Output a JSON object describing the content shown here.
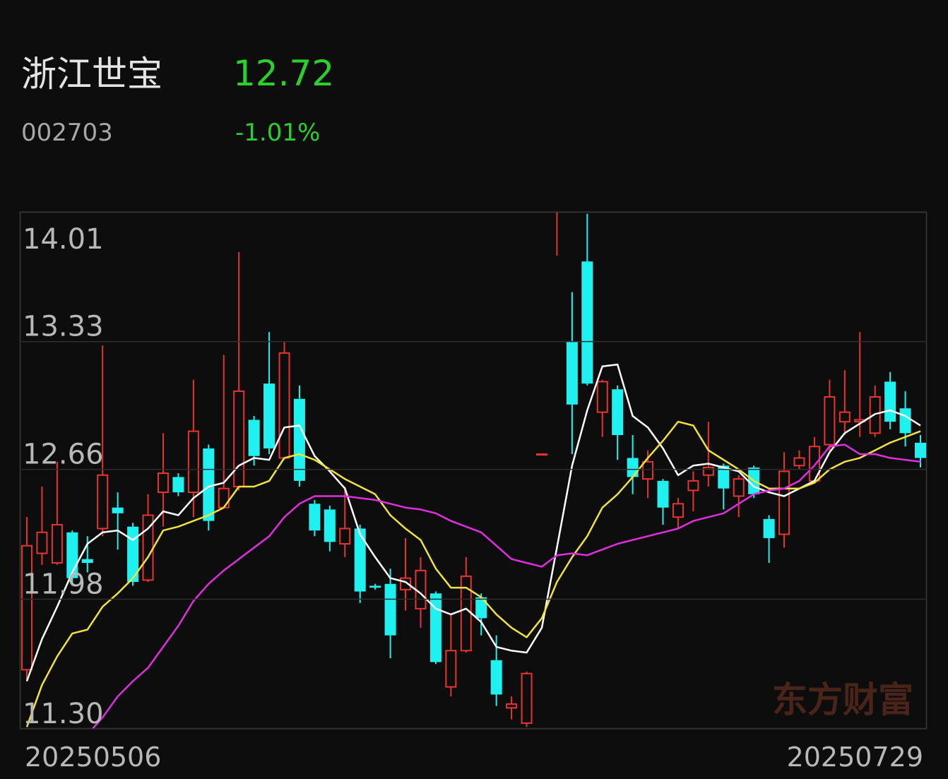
{
  "header": {
    "name": "浙江世宝",
    "price": "12.72",
    "code": "002703",
    "change": "-1.01%"
  },
  "watermark": "东方财富",
  "chart_data": {
    "type": "candlestick",
    "categories": [
      "20250506",
      null,
      null,
      null,
      null,
      null,
      null,
      null,
      null,
      null,
      null,
      null,
      null,
      null,
      null,
      null,
      null,
      null,
      null,
      null,
      null,
      null,
      null,
      null,
      null,
      null,
      null,
      null,
      null,
      null,
      null,
      null,
      null,
      null,
      null,
      null,
      null,
      null,
      null,
      null,
      null,
      null,
      null,
      null,
      null,
      null,
      null,
      null,
      null,
      null,
      null,
      null,
      null,
      null,
      null,
      null,
      null,
      null,
      null,
      "20250729"
    ],
    "open": [
      11.61,
      12.22,
      12.17,
      12.33,
      12.19,
      12.35,
      12.46,
      12.36,
      12.08,
      12.54,
      12.62,
      12.54,
      12.77,
      12.46,
      12.57,
      12.92,
      13.11,
      12.72,
      13.03,
      12.48,
      12.45,
      12.27,
      12.35,
      12.05,
      12.06,
      12.03,
      11.93,
      12.01,
      11.52,
      11.71,
      11.99,
      11.66,
      11.41,
      11.33,
      12.74,
      14.02,
      13.33,
      13.75,
      12.96,
      13.08,
      12.72,
      12.61,
      12.6,
      12.41,
      12.55,
      12.63,
      12.68,
      12.52,
      12.67,
      12.4,
      12.32,
      12.68,
      12.6,
      12.79,
      12.91,
      12.91,
      12.85,
      13.12,
      12.98,
      12.8
    ],
    "high": [
      12.41,
      12.57,
      12.7,
      12.34,
      12.31,
      13.31,
      12.54,
      12.38,
      12.53,
      12.85,
      12.64,
      13.13,
      12.79,
      13.26,
      13.8,
      12.94,
      13.38,
      13.33,
      13.1,
      12.5,
      12.47,
      12.57,
      12.37,
      12.06,
      12.14,
      12.3,
      12.2,
      12.02,
      11.9,
      12.2,
      12.01,
      11.79,
      11.47,
      11.6,
      12.74,
      14.02,
      13.59,
      14.0,
      13.13,
      13.1,
      12.84,
      12.76,
      12.61,
      12.51,
      12.65,
      12.91,
      12.69,
      12.63,
      12.68,
      12.42,
      12.75,
      12.76,
      12.83,
      13.13,
      13.18,
      13.38,
      13.1,
      13.17,
      13.07,
      12.84
    ],
    "low": [
      11.55,
      12.16,
      12.16,
      12.05,
      12.12,
      12.31,
      12.24,
      12.05,
      12.07,
      12.36,
      12.52,
      12.41,
      12.34,
      12.46,
      12.55,
      12.68,
      12.74,
      12.71,
      12.57,
      12.31,
      12.23,
      12.2,
      11.96,
      12.03,
      11.67,
      11.92,
      11.83,
      11.64,
      11.47,
      11.7,
      11.79,
      11.42,
      11.35,
      11.31,
      12.74,
      13.78,
      12.74,
      13.1,
      12.83,
      12.71,
      12.53,
      12.51,
      12.37,
      12.35,
      12.44,
      12.57,
      12.45,
      12.41,
      12.51,
      12.17,
      12.25,
      12.66,
      12.59,
      12.76,
      12.84,
      12.83,
      12.83,
      12.87,
      12.78,
      12.67
    ],
    "close": [
      12.26,
      12.33,
      12.37,
      12.09,
      12.17,
      12.63,
      12.43,
      12.07,
      12.42,
      12.64,
      12.54,
      12.86,
      12.39,
      12.56,
      13.07,
      12.73,
      12.77,
      13.27,
      12.6,
      12.34,
      12.28,
      12.35,
      12.02,
      12.04,
      11.79,
      12.09,
      12.13,
      11.65,
      11.71,
      12.1,
      11.88,
      11.48,
      11.43,
      11.59,
      12.74,
      14.02,
      13.0,
      13.11,
      13.12,
      12.84,
      12.62,
      12.7,
      12.46,
      12.48,
      12.6,
      12.67,
      12.56,
      12.61,
      12.53,
      12.3,
      12.65,
      12.72,
      12.78,
      13.04,
      12.96,
      12.92,
      13.04,
      12.91,
      12.85,
      12.72
    ],
    "up_color": "#e8342f",
    "down_color": "#1ff0f0",
    "lines": [
      {
        "color": "#ffffff",
        "values": [
          11.55,
          11.77,
          11.94,
          12.12,
          12.27,
          12.33,
          12.34,
          12.29,
          12.35,
          12.44,
          12.42,
          12.51,
          12.57,
          12.59,
          12.68,
          12.72,
          12.71,
          12.88,
          12.89,
          12.73,
          12.65,
          12.56,
          12.32,
          12.2,
          12.09,
          12.07,
          12.01,
          11.93,
          11.9,
          11.93,
          11.86,
          11.73,
          11.71,
          11.7,
          11.83,
          12.25,
          12.68,
          12.97,
          13.2,
          13.21,
          12.94,
          12.88,
          12.77,
          12.63,
          12.68,
          12.69,
          12.67,
          12.65,
          12.57,
          12.54,
          12.52,
          12.56,
          12.6,
          12.75,
          12.85,
          12.9,
          12.95,
          12.97,
          12.94,
          12.89
        ]
      },
      {
        "color": "#f2e23a",
        "values": [
          11.31,
          11.53,
          11.68,
          11.8,
          11.82,
          11.94,
          12.01,
          12.09,
          12.2,
          12.34,
          12.36,
          12.39,
          12.42,
          12.46,
          12.57,
          12.57,
          12.6,
          12.72,
          12.74,
          12.71,
          12.66,
          12.61,
          12.57,
          12.53,
          12.42,
          12.35,
          12.29,
          12.14,
          12.04,
          12.04,
          11.99,
          11.9,
          11.83,
          11.78,
          11.88,
          12.07,
          12.2,
          12.31,
          12.46,
          12.53,
          12.62,
          12.72,
          12.81,
          12.91,
          12.89,
          12.76,
          12.71,
          12.66,
          12.6,
          12.56,
          12.56,
          12.56,
          12.59,
          12.66,
          12.7,
          12.72,
          12.76,
          12.8,
          12.83,
          12.86
        ]
      },
      {
        "color": "#e02ee0",
        "values": [
          null,
          null,
          null,
          null,
          11.27,
          11.36,
          11.47,
          11.55,
          11.62,
          11.73,
          11.84,
          11.97,
          12.06,
          12.13,
          12.19,
          12.25,
          12.31,
          12.41,
          12.48,
          12.52,
          12.52,
          12.52,
          12.51,
          12.5,
          12.48,
          12.46,
          12.45,
          12.43,
          12.39,
          12.36,
          12.33,
          12.26,
          12.19,
          12.17,
          12.15,
          12.21,
          12.22,
          12.21,
          12.24,
          12.27,
          12.29,
          12.31,
          12.33,
          12.35,
          12.39,
          12.41,
          12.43,
          12.48,
          12.53,
          12.55,
          12.56,
          12.6,
          12.68,
          12.78,
          12.79,
          12.74,
          12.74,
          12.72,
          12.71,
          12.7
        ]
      }
    ],
    "ylim": [
      11.3,
      14.01
    ],
    "yticks": [
      {
        "value": 11.3,
        "label": "11.30"
      },
      11.98,
      12.66,
      13.33,
      14.01
    ],
    "grid": true
  }
}
